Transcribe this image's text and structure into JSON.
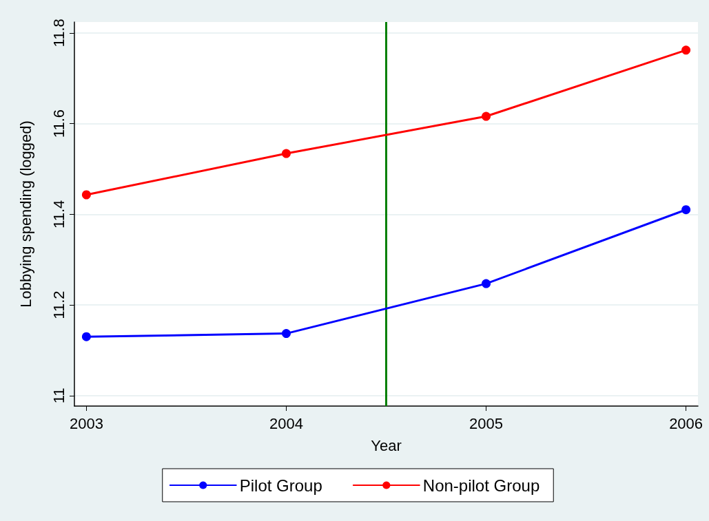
{
  "chart_data": {
    "type": "line",
    "xlabel": "Year",
    "ylabel": "Lobbying spending (logged)",
    "x": [
      2003,
      2004,
      2005,
      2006
    ],
    "series": [
      {
        "name": "Pilot Group",
        "color": "#0000ff",
        "values": [
          11.13,
          11.137,
          11.247,
          11.41
        ]
      },
      {
        "name": "Non-pilot Group",
        "color": "#ff0000",
        "values": [
          11.443,
          11.534,
          11.616,
          11.762
        ]
      }
    ],
    "xlim": [
      2002.94,
      2006.06
    ],
    "xticks": [
      2003,
      2004,
      2005,
      2006
    ],
    "ylim": [
      10.977,
      11.824
    ],
    "yticks": [
      11,
      11.2,
      11.4,
      11.6,
      11.8
    ],
    "ref_lines": [
      {
        "axis": "x",
        "value": 2004.5,
        "color": "#008000"
      }
    ],
    "grid": "y",
    "legend": "bottom",
    "marker": "circle",
    "line_style": "solid"
  }
}
